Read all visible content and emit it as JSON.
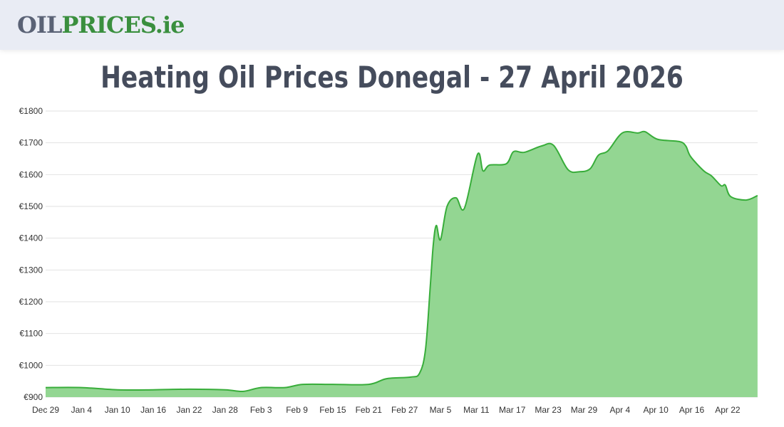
{
  "header": {
    "logo_part1": "OIL",
    "logo_part2": "PRICES.ie"
  },
  "title": "Heating Oil Prices Donegal - 27 April 2026",
  "chart_data": {
    "type": "area",
    "title": "Heating Oil Prices Donegal - 27 April 2026",
    "xlabel": "",
    "ylabel": "",
    "x_unit": "days since Dec 29",
    "ylim": [
      900,
      1800
    ],
    "y_ticks": [
      "€900",
      "€1000",
      "€1100",
      "€1200",
      "€1300",
      "€1400",
      "€1500",
      "€1600",
      "€1700",
      "€1800"
    ],
    "x_ticks": [
      "Dec 29",
      "Jan 4",
      "Jan 10",
      "Jan 16",
      "Jan 22",
      "Jan 28",
      "Feb 3",
      "Feb 9",
      "Feb 15",
      "Feb 21",
      "Feb 27",
      "Mar 5",
      "Mar 11",
      "Mar 17",
      "Mar 23",
      "Mar 29",
      "Apr 4",
      "Apr 10",
      "Apr 16",
      "Apr 22"
    ],
    "grid": true,
    "colors": {
      "line": "#38ad3a",
      "fill": "#93d692"
    },
    "points": [
      [
        0,
        930
      ],
      [
        6,
        930
      ],
      [
        12,
        923
      ],
      [
        18,
        923
      ],
      [
        24,
        925
      ],
      [
        30,
        923
      ],
      [
        33,
        918
      ],
      [
        36,
        930
      ],
      [
        40,
        930
      ],
      [
        43,
        940
      ],
      [
        48,
        940
      ],
      [
        54,
        940
      ],
      [
        57,
        958
      ],
      [
        61,
        963
      ],
      [
        62.5,
        975
      ],
      [
        63.5,
        1050
      ],
      [
        64.3,
        1250
      ],
      [
        64.8,
        1380
      ],
      [
        65.3,
        1440
      ],
      [
        66,
        1395
      ],
      [
        67.1,
        1500
      ],
      [
        68.6,
        1527
      ],
      [
        70,
        1494
      ],
      [
        72.2,
        1664
      ],
      [
        73.1,
        1612
      ],
      [
        74.2,
        1630
      ],
      [
        77,
        1634
      ],
      [
        78.2,
        1672
      ],
      [
        80,
        1670
      ],
      [
        82.9,
        1690
      ],
      [
        84.9,
        1692
      ],
      [
        87.3,
        1616
      ],
      [
        89.2,
        1609
      ],
      [
        91,
        1618
      ],
      [
        92.4,
        1661
      ],
      [
        94,
        1675
      ],
      [
        96.4,
        1731
      ],
      [
        99,
        1731
      ],
      [
        100.2,
        1735
      ],
      [
        102.3,
        1711
      ],
      [
        105.9,
        1704
      ],
      [
        107,
        1690
      ],
      [
        107.8,
        1657
      ],
      [
        110,
        1612
      ],
      [
        111.3,
        1596
      ],
      [
        112.9,
        1565
      ],
      [
        113.6,
        1567
      ],
      [
        114.5,
        1531
      ],
      [
        117.1,
        1520
      ],
      [
        119,
        1534
      ]
    ]
  }
}
